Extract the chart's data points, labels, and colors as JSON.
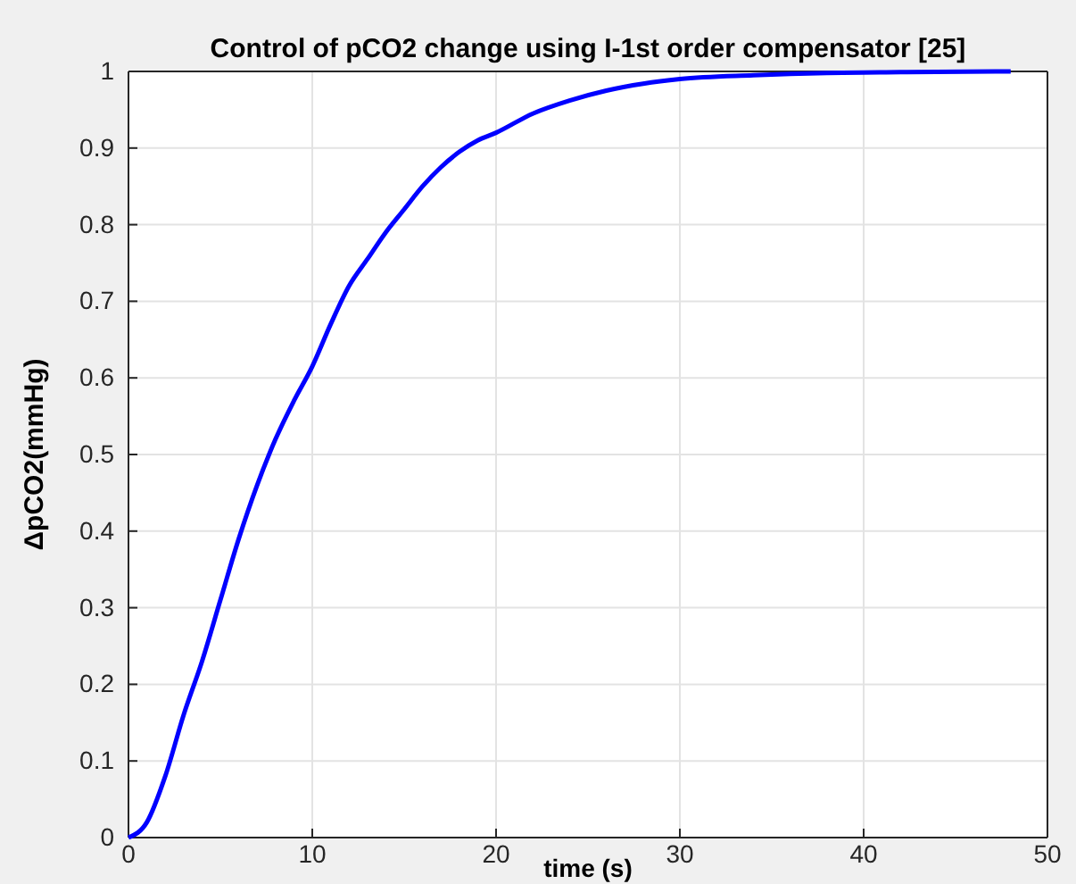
{
  "chart_data": {
    "type": "line",
    "title": "Control of pCO2 change using I-1st order compensator [25]",
    "xlabel": "time (s)",
    "ylabel": "ΔpCO2(mmHg)",
    "x": [
      0,
      1,
      2,
      3,
      4,
      5,
      6,
      7,
      8,
      9,
      10,
      11,
      12,
      13,
      14,
      15,
      16,
      17,
      18,
      19,
      20,
      22,
      24,
      26,
      28,
      30,
      34,
      38,
      42,
      48
    ],
    "series": [
      {
        "color": "#0000ff",
        "values": [
          0,
          0.02,
          0.08,
          0.16,
          0.23,
          0.31,
          0.39,
          0.46,
          0.52,
          0.57,
          0.615,
          0.67,
          0.72,
          0.755,
          0.79,
          0.82,
          0.85,
          0.875,
          0.895,
          0.91,
          0.92,
          0.945,
          0.962,
          0.975,
          0.984,
          0.99,
          0.995,
          0.998,
          0.999,
          1
        ]
      }
    ],
    "xlim": [
      0,
      50
    ],
    "xticks": [
      0,
      10,
      20,
      30,
      40,
      50
    ],
    "ylim": [
      0,
      1
    ],
    "yticks": [
      0,
      0.1,
      0.2,
      0.3,
      0.4,
      0.5,
      0.6,
      0.7,
      0.8,
      0.9,
      1
    ],
    "grid": true,
    "line_style": "solid",
    "marker": "none"
  }
}
